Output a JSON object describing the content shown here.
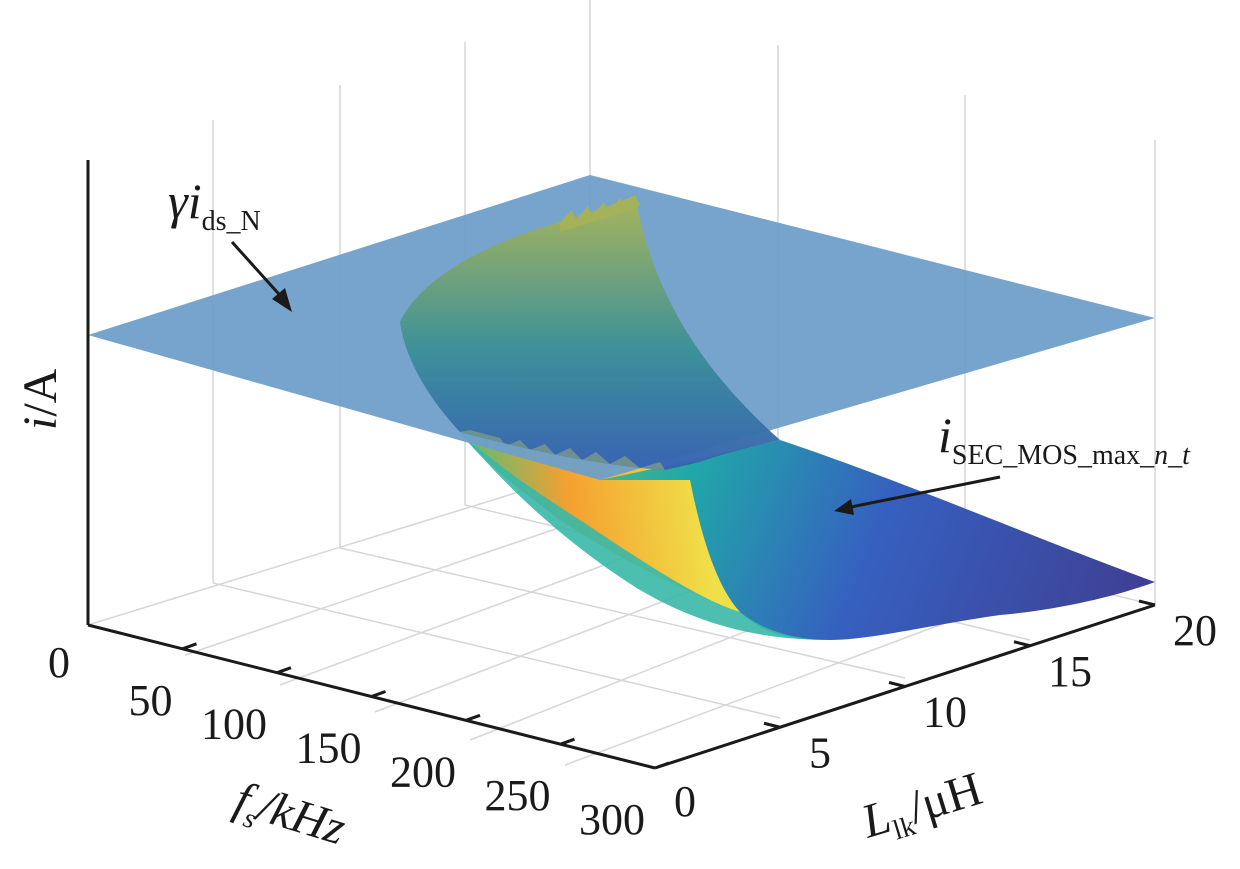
{
  "chart_data": {
    "type": "surface3d",
    "x_axis": {
      "symbol": "f",
      "subscript": "s",
      "unit": "/kHz",
      "ticks": [
        "0",
        "50",
        "100",
        "150",
        "200",
        "250",
        "300"
      ],
      "range": [
        0,
        300
      ]
    },
    "y_axis": {
      "symbol": "L",
      "subscript": "lk",
      "unit": "/μH",
      "ticks": [
        "0",
        "5",
        "10",
        "15",
        "20"
      ],
      "range": [
        0,
        20
      ]
    },
    "z_axis": {
      "symbol": "i",
      "unit": "/A"
    },
    "grid": true,
    "surfaces": [
      {
        "label_main": "γi",
        "label_sub": "ds_N",
        "shape": "flat plane",
        "color": "#6f9fc9"
      },
      {
        "label_main": "i",
        "label_sub": "SEC_MOS_max_",
        "label_sub_italic1": "n",
        "label_sub_sep": "_",
        "label_sub_italic2": "t",
        "shape": "curved surface",
        "colormap": "parula"
      }
    ],
    "colors": {
      "plane": "#6f9fc9",
      "surface_low": "#3f3f93",
      "surface_mid": "#20a8a8",
      "surface_high": "#f5c02e",
      "axis": "#1a1a1a",
      "grid": "#d4d4d4"
    }
  }
}
